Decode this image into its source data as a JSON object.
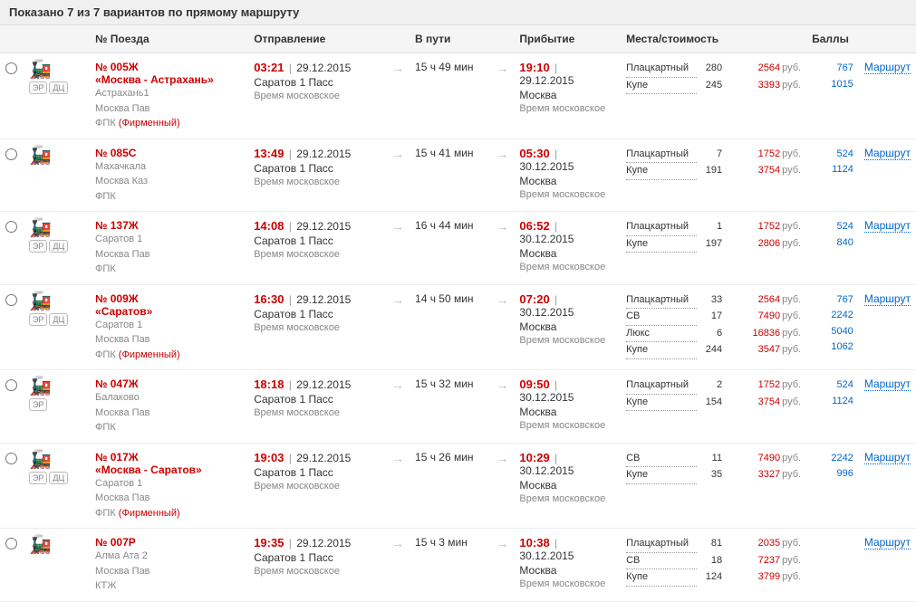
{
  "header_text": "Показано 7 из 7 вариантов по прямому маршруту",
  "columns": {
    "train": "№ Поезда",
    "departure": "Отправление",
    "duration": "В пути",
    "arrival": "Прибытие",
    "seats": "Места/стоимость",
    "points": "Баллы"
  },
  "route_label": "Маршрут",
  "currency": "руб.",
  "time_note": "Время московское",
  "dep_station_default": "Саратов 1 Пасс",
  "arr_city_default": "Москва",
  "badges": {
    "er": "ЭР",
    "dc": "ДЦ"
  },
  "trains": [
    {
      "number": "№ 005Ж",
      "name": "«Москва - Астрахань»",
      "from": "Астрахань1",
      "to": "Москва Пав",
      "carrier": "ФПК",
      "branded": "(Фирменный)",
      "badges": [
        "er",
        "dc"
      ],
      "dep_time": "03:21",
      "dep_date": "29.12.2015",
      "duration": "15 ч 49 мин",
      "arr_time": "19:10",
      "arr_date": "29.12.2015",
      "seats": [
        {
          "type": "Плацкартный",
          "count": "280",
          "price": "2564",
          "points": "767"
        },
        {
          "type": "Купе",
          "count": "245",
          "price": "3393",
          "points": "1015"
        }
      ]
    },
    {
      "number": "№ 085С",
      "name": "",
      "from": "Махачкала",
      "to": "Москва Каз",
      "carrier": "ФПК",
      "branded": "",
      "badges": [],
      "dep_time": "13:49",
      "dep_date": "29.12.2015",
      "duration": "15 ч 41 мин",
      "arr_time": "05:30",
      "arr_date": "30.12.2015",
      "seats": [
        {
          "type": "Плацкартный",
          "count": "7",
          "price": "1752",
          "points": "524"
        },
        {
          "type": "Купе",
          "count": "191",
          "price": "3754",
          "points": "1124"
        }
      ]
    },
    {
      "number": "№ 137Ж",
      "name": "",
      "from": "Саратов 1",
      "to": "Москва Пав",
      "carrier": "ФПК",
      "branded": "",
      "badges": [
        "er",
        "dc"
      ],
      "dep_time": "14:08",
      "dep_date": "29.12.2015",
      "duration": "16 ч 44 мин",
      "arr_time": "06:52",
      "arr_date": "30.12.2015",
      "seats": [
        {
          "type": "Плацкартный",
          "count": "1",
          "price": "1752",
          "points": "524"
        },
        {
          "type": "Купе",
          "count": "197",
          "price": "2806",
          "points": "840"
        }
      ]
    },
    {
      "number": "№ 009Ж",
      "name": "«Саратов»",
      "from": "Саратов 1",
      "to": "Москва Пав",
      "carrier": "ФПК",
      "branded": "(Фирменный)",
      "badges": [
        "er",
        "dc"
      ],
      "dep_time": "16:30",
      "dep_date": "29.12.2015",
      "duration": "14 ч 50 мин",
      "arr_time": "07:20",
      "arr_date": "30.12.2015",
      "seats": [
        {
          "type": "Плацкартный",
          "count": "33",
          "price": "2564",
          "points": "767"
        },
        {
          "type": "СВ",
          "count": "17",
          "price": "7490",
          "points": "2242"
        },
        {
          "type": "Люкс",
          "count": "6",
          "price": "16836",
          "points": "5040"
        },
        {
          "type": "Купе",
          "count": "244",
          "price": "3547",
          "points": "1062"
        }
      ]
    },
    {
      "number": "№ 047Ж",
      "name": "",
      "from": "Балаково",
      "to": "Москва Пав",
      "carrier": "ФПК",
      "branded": "",
      "badges": [
        "er"
      ],
      "dep_time": "18:18",
      "dep_date": "29.12.2015",
      "duration": "15 ч 32 мин",
      "arr_time": "09:50",
      "arr_date": "30.12.2015",
      "seats": [
        {
          "type": "Плацкартный",
          "count": "2",
          "price": "1752",
          "points": "524"
        },
        {
          "type": "Купе",
          "count": "154",
          "price": "3754",
          "points": "1124"
        }
      ]
    },
    {
      "number": "№ 017Ж",
      "name": "«Москва - Саратов»",
      "from": "Саратов 1",
      "to": "Москва Пав",
      "carrier": "ФПК",
      "branded": "(Фирменный)",
      "badges": [
        "er",
        "dc"
      ],
      "dep_time": "19:03",
      "dep_date": "29.12.2015",
      "duration": "15 ч 26 мин",
      "arr_time": "10:29",
      "arr_date": "30.12.2015",
      "seats": [
        {
          "type": "СВ",
          "count": "11",
          "price": "7490",
          "points": "2242"
        },
        {
          "type": "Купе",
          "count": "35",
          "price": "3327",
          "points": "996"
        }
      ]
    },
    {
      "number": "№ 007Р",
      "name": "",
      "from": "Алма Ата 2",
      "to": "Москва Пав",
      "carrier": "КТЖ",
      "branded": "",
      "badges": [],
      "dep_time": "19:35",
      "dep_date": "29.12.2015",
      "duration": "15 ч 3 мин",
      "arr_time": "10:38",
      "arr_date": "30.12.2015",
      "seats": [
        {
          "type": "Плацкартный",
          "count": "81",
          "price": "2035",
          "points": ""
        },
        {
          "type": "СВ",
          "count": "18",
          "price": "7237",
          "points": ""
        },
        {
          "type": "Купе",
          "count": "124",
          "price": "3799",
          "points": ""
        }
      ]
    }
  ]
}
